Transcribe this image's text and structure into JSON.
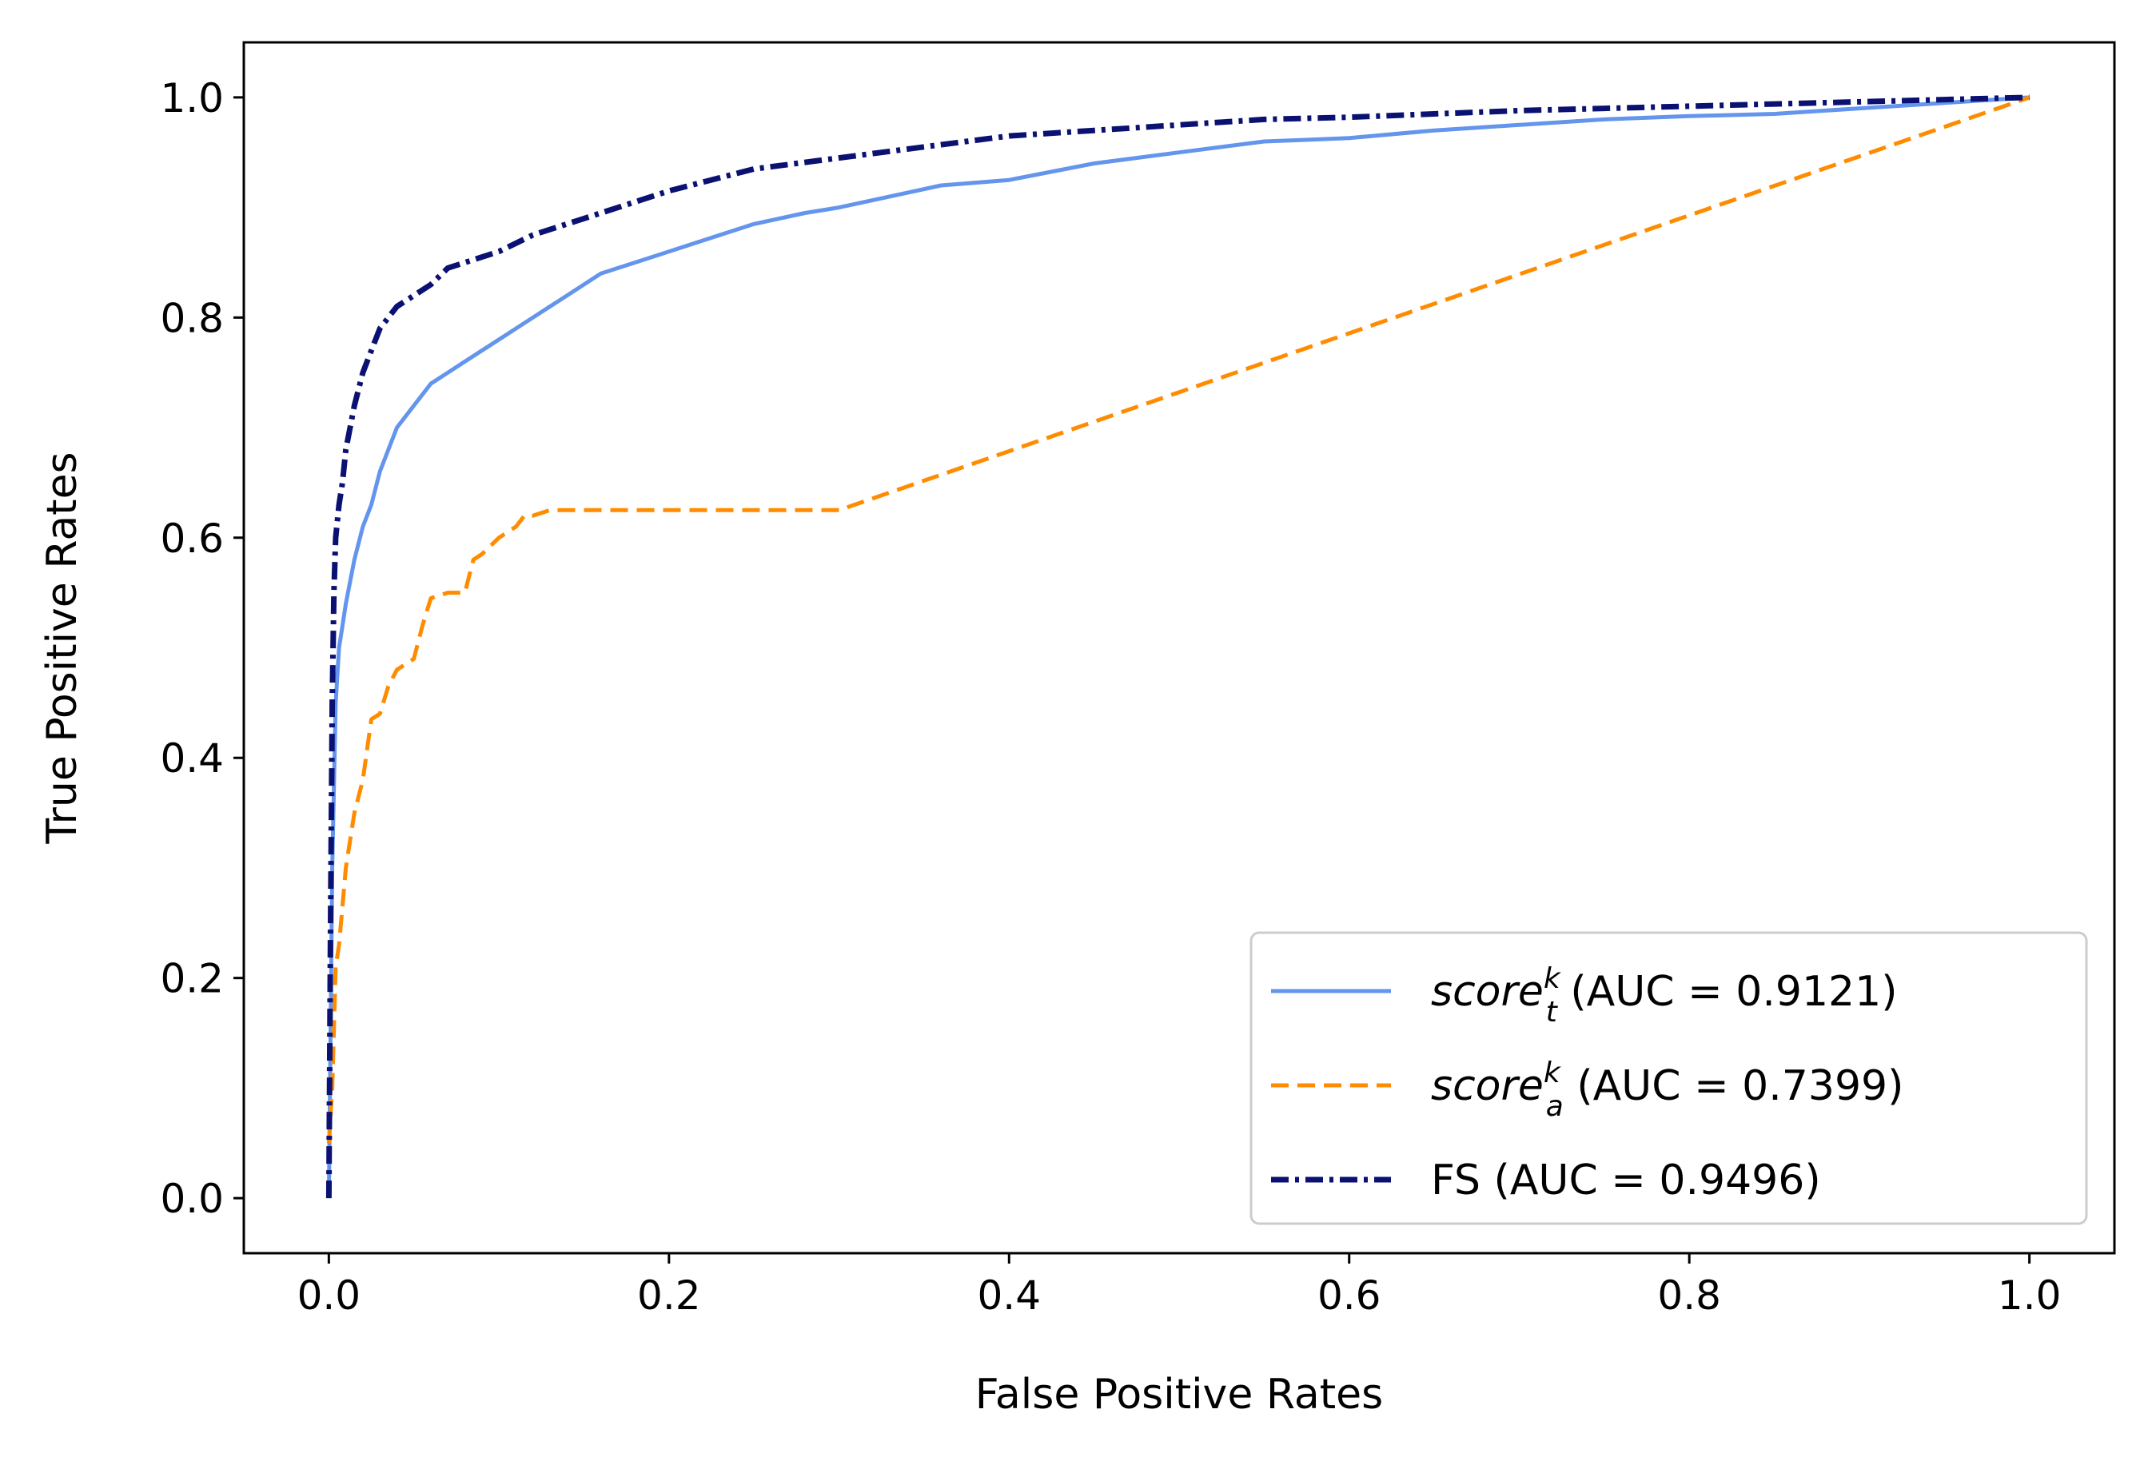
{
  "chart_data": {
    "type": "line",
    "xlabel": "False Positive Rates",
    "ylabel": "True Positive Rates",
    "xlim": [
      -0.05,
      1.05
    ],
    "ylim": [
      -0.05,
      1.05
    ],
    "xticks": [
      0.0,
      0.2,
      0.4,
      0.6,
      0.8,
      1.0
    ],
    "yticks": [
      0.0,
      0.2,
      0.4,
      0.6,
      0.8,
      1.0
    ],
    "xtick_labels": [
      "0.0",
      "0.2",
      "0.4",
      "0.6",
      "0.8",
      "1.0"
    ],
    "ytick_labels": [
      "0.0",
      "0.2",
      "0.4",
      "0.6",
      "0.8",
      "1.0"
    ],
    "grid": false,
    "legend_position": "bottom-right",
    "series": [
      {
        "legend_base": "score",
        "legend_sup": "k",
        "legend_sub": "t",
        "legend_rest": " (AUC = 0.9121)",
        "color": "#6495ED",
        "dash": "solid",
        "x": [
          0.0,
          0.002,
          0.004,
          0.006,
          0.008,
          0.01,
          0.015,
          0.02,
          0.025,
          0.03,
          0.035,
          0.04,
          0.05,
          0.06,
          0.07,
          0.08,
          0.09,
          0.1,
          0.12,
          0.14,
          0.16,
          0.18,
          0.2,
          0.22,
          0.25,
          0.28,
          0.3,
          0.33,
          0.36,
          0.4,
          0.45,
          0.5,
          0.55,
          0.6,
          0.65,
          0.7,
          0.75,
          0.8,
          0.85,
          0.9,
          0.95,
          1.0
        ],
        "y": [
          0.0,
          0.3,
          0.45,
          0.5,
          0.52,
          0.54,
          0.58,
          0.61,
          0.63,
          0.66,
          0.68,
          0.7,
          0.72,
          0.74,
          0.75,
          0.76,
          0.77,
          0.78,
          0.8,
          0.82,
          0.84,
          0.85,
          0.86,
          0.87,
          0.885,
          0.895,
          0.9,
          0.91,
          0.92,
          0.925,
          0.94,
          0.95,
          0.96,
          0.963,
          0.97,
          0.975,
          0.98,
          0.983,
          0.985,
          0.99,
          0.995,
          1.0
        ]
      },
      {
        "legend_base": "score",
        "legend_sup": "k",
        "legend_sub": "a",
        "legend_rest": " (AUC = 0.7399)",
        "color": "#FF8C00",
        "dash": "dashed",
        "x": [
          0.0,
          0.002,
          0.004,
          0.006,
          0.01,
          0.015,
          0.02,
          0.025,
          0.03,
          0.035,
          0.04,
          0.05,
          0.055,
          0.06,
          0.07,
          0.08,
          0.085,
          0.09,
          0.1,
          0.11,
          0.115,
          0.12,
          0.13,
          0.2,
          0.25,
          0.3,
          1.0
        ],
        "y": [
          0.05,
          0.1,
          0.21,
          0.23,
          0.3,
          0.35,
          0.38,
          0.435,
          0.44,
          0.465,
          0.48,
          0.49,
          0.52,
          0.545,
          0.55,
          0.55,
          0.58,
          0.585,
          0.6,
          0.61,
          0.62,
          0.62,
          0.625,
          0.625,
          0.625,
          0.625,
          1.0
        ]
      },
      {
        "legend_base": "FS",
        "legend_sup": "",
        "legend_sub": "",
        "legend_rest": " (AUC = 0.9496)",
        "color": "#0A1172",
        "dash": "dashdot",
        "x": [
          0.0,
          0.001,
          0.002,
          0.003,
          0.004,
          0.006,
          0.008,
          0.01,
          0.015,
          0.02,
          0.025,
          0.03,
          0.035,
          0.04,
          0.05,
          0.06,
          0.07,
          0.08,
          0.1,
          0.12,
          0.15,
          0.18,
          0.2,
          0.25,
          0.3,
          0.35,
          0.4,
          0.45,
          0.5,
          0.55,
          0.6,
          0.65,
          0.7,
          0.75,
          0.8,
          0.85,
          0.9,
          0.95,
          1.0
        ],
        "y": [
          0.0,
          0.25,
          0.45,
          0.55,
          0.6,
          0.63,
          0.65,
          0.68,
          0.72,
          0.75,
          0.77,
          0.79,
          0.8,
          0.81,
          0.82,
          0.83,
          0.845,
          0.85,
          0.86,
          0.875,
          0.89,
          0.905,
          0.915,
          0.935,
          0.945,
          0.955,
          0.965,
          0.97,
          0.975,
          0.98,
          0.982,
          0.985,
          0.988,
          0.99,
          0.992,
          0.994,
          0.996,
          0.998,
          1.0
        ]
      }
    ]
  }
}
